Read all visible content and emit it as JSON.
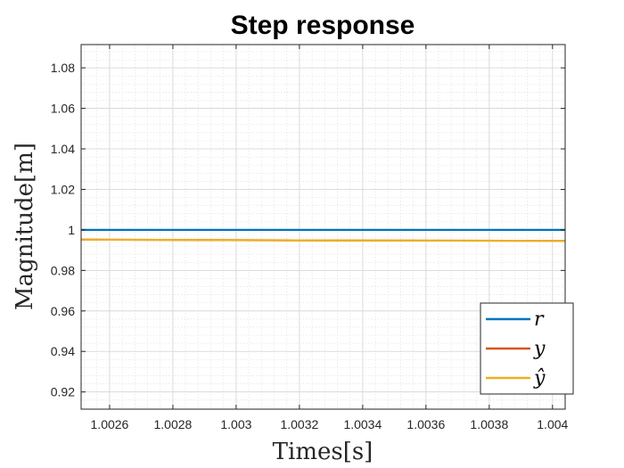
{
  "chart_data": {
    "type": "line",
    "title": "Step response",
    "xlabel": "Times[s]",
    "ylabel": "Magnitude[m]",
    "xlim": [
      1.00251,
      1.00404
    ],
    "ylim": [
      0.9115,
      1.0915
    ],
    "xticks": [
      1.0026,
      1.0028,
      1.003,
      1.0032,
      1.0034,
      1.0036,
      1.0038,
      1.004
    ],
    "xtick_labels": [
      "1.0026",
      "1.0028",
      "1.003",
      "1.0032",
      "1.0034",
      "1.0036",
      "1.0038",
      "1.004"
    ],
    "yticks": [
      0.92,
      0.94,
      0.96,
      0.98,
      1.0,
      1.02,
      1.04,
      1.06,
      1.08
    ],
    "ytick_labels": [
      "0.92",
      "0.94",
      "0.96",
      "0.98",
      "1",
      "1.02",
      "1.04",
      "1.06",
      "1.08"
    ],
    "grid": true,
    "minor_grid": true,
    "legend_position": "bottom-right",
    "series": [
      {
        "name": "r",
        "color": "#0072BD",
        "x": [
          1.00251,
          1.00404
        ],
        "y": [
          1.0,
          1.0
        ]
      },
      {
        "name": "y",
        "color": "#D95319",
        "x": [
          1.00251,
          1.0029,
          1.0033,
          1.0037,
          1.00404
        ],
        "y": [
          0.9952,
          0.995,
          0.9948,
          0.9947,
          0.9946
        ]
      },
      {
        "name": "ŷ",
        "color": "#EDB120",
        "x": [
          1.00251,
          1.0029,
          1.0033,
          1.0037,
          1.00404
        ],
        "y": [
          0.9952,
          0.995,
          0.9948,
          0.9947,
          0.9946
        ]
      }
    ]
  }
}
